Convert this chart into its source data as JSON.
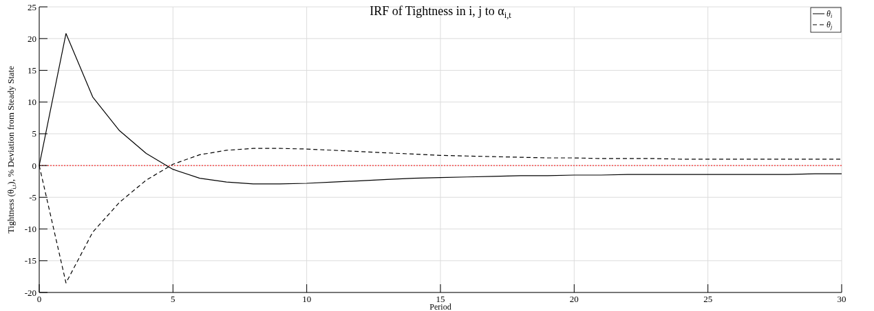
{
  "chart_data": {
    "type": "line",
    "title": "IRF of Tightness in i, j to α$_{i,t}$",
    "xlabel": "Period",
    "ylabel": "Tightness (θ$_{i,t}$), % Deviation from Steady State",
    "x": [
      0,
      1,
      2,
      3,
      4,
      5,
      6,
      7,
      8,
      9,
      10,
      11,
      12,
      13,
      14,
      15,
      16,
      17,
      18,
      19,
      20,
      21,
      22,
      23,
      24,
      25,
      26,
      27,
      28,
      29,
      30
    ],
    "series": [
      {
        "name": "θ$_{i}$",
        "color": "#000000",
        "line_style": "solid",
        "values": [
          0,
          20.8,
          10.8,
          5.5,
          1.9,
          -0.6,
          -2.0,
          -2.6,
          -2.9,
          -2.9,
          -2.8,
          -2.6,
          -2.4,
          -2.2,
          -2.0,
          -1.9,
          -1.8,
          -1.7,
          -1.6,
          -1.6,
          -1.5,
          -1.5,
          -1.4,
          -1.4,
          -1.4,
          -1.4,
          -1.4,
          -1.4,
          -1.4,
          -1.3,
          -1.3
        ]
      },
      {
        "name": "θ$_{j}$",
        "color": "#000000",
        "line_style": "dashed",
        "values": [
          0,
          -18.5,
          -10.5,
          -5.8,
          -2.3,
          0.2,
          1.7,
          2.4,
          2.7,
          2.7,
          2.6,
          2.4,
          2.2,
          2.0,
          1.8,
          1.6,
          1.5,
          1.4,
          1.3,
          1.2,
          1.2,
          1.1,
          1.1,
          1.1,
          1.0,
          1.0,
          1.0,
          1.0,
          1.0,
          1.0,
          1.0
        ]
      }
    ],
    "xlim": [
      0,
      30
    ],
    "xticks": [
      0,
      5,
      10,
      15,
      20,
      25,
      30
    ],
    "ylim": [
      -20,
      25
    ],
    "yticks": [
      -20,
      -15,
      -10,
      -5,
      0,
      5,
      10,
      15,
      20,
      25
    ],
    "ref_lines": [
      {
        "axis": "y",
        "value": 0,
        "color": "#ff0000",
        "line_style": "dotted"
      }
    ],
    "grid": true,
    "legend": "top right"
  }
}
